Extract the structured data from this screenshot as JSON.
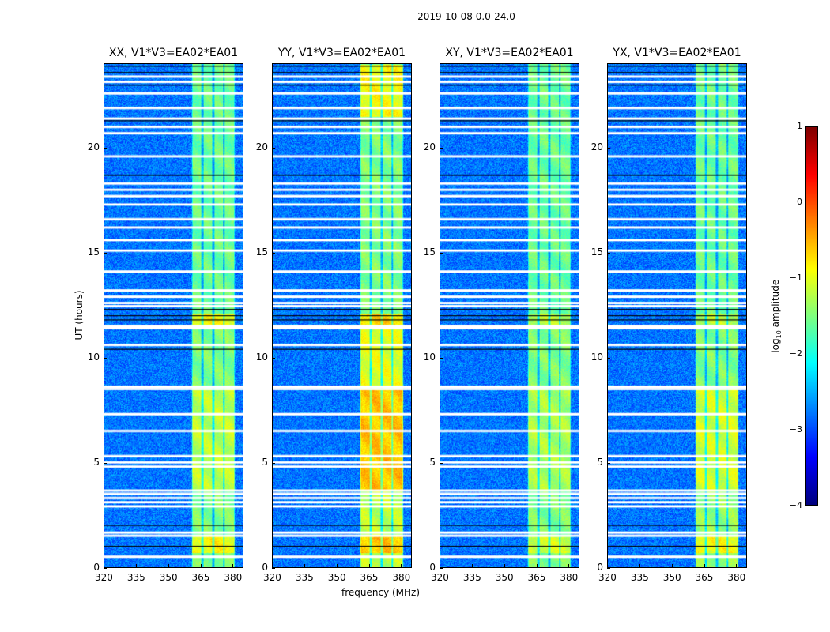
{
  "suptitle": "2019-10-08 0.0-24.0",
  "chart_data": {
    "type": "heatmap",
    "xlabel": "frequency (MHz)",
    "ylabel": "UT (hours)",
    "xlim": [
      320,
      385
    ],
    "ylim": [
      0,
      24
    ],
    "xticks": [
      "320",
      "335",
      "350",
      "365",
      "380"
    ],
    "xtick_values": [
      320,
      335,
      350,
      365,
      380
    ],
    "yticks": [
      "0",
      "5",
      "10",
      "15",
      "20"
    ],
    "ytick_values": [
      0,
      5,
      10,
      15,
      20
    ],
    "colorbar": {
      "label_main": "log",
      "label_sub": "10",
      "label_rest": " amplitude",
      "range": [
        -4,
        1
      ],
      "ticks": [
        "1",
        "0",
        "−1",
        "−2",
        "−3",
        "−4"
      ],
      "tick_values": [
        1,
        0,
        -1,
        -2,
        -3,
        -4
      ],
      "colormap": "jet"
    },
    "background_level": -2.8,
    "band_mhz": [
      361,
      381
    ],
    "band_gaps_mhz": [
      366,
      371,
      376
    ],
    "flagged_white_ut": [
      0.5,
      1.5,
      1.65,
      2.9,
      3.1,
      3.3,
      3.5,
      3.65,
      4.8,
      5.0,
      5.3,
      6.5,
      7.3,
      8.5,
      8.6,
      10.6,
      11.4,
      11.5,
      12.45,
      12.6,
      12.9,
      13.2,
      14.1,
      15.1,
      15.6,
      16.2,
      16.6,
      17.3,
      17.7,
      18.0,
      18.3,
      19.6,
      20.7,
      21.0,
      21.4,
      21.9,
      22.6,
      23.15,
      23.4
    ],
    "flagged_black_ut": [
      1.0,
      2.0,
      10.4,
      11.8,
      12.0,
      12.3,
      18.7,
      21.3,
      23.0,
      23.6,
      23.9
    ],
    "panels": [
      {
        "title": "XX, V1*V3=EA02*EA01",
        "band_levels": [
          [
            0,
            0.7,
            -1.5
          ],
          [
            0.7,
            1.5,
            -0.9
          ],
          [
            1.5,
            3.7,
            -1.5
          ],
          [
            3.7,
            8.5,
            -1.2
          ],
          [
            8.6,
            11.5,
            -1.5
          ],
          [
            11.5,
            12.1,
            -0.9
          ],
          [
            12.1,
            24,
            -1.6
          ]
        ]
      },
      {
        "title": "YY, V1*V3=EA02*EA01",
        "band_levels": [
          [
            0,
            0.7,
            -1.2
          ],
          [
            0.7,
            1.5,
            -0.6
          ],
          [
            1.5,
            3.7,
            -1.2
          ],
          [
            3.7,
            8.5,
            -0.6
          ],
          [
            8.6,
            11.5,
            -1.0
          ],
          [
            11.5,
            12.1,
            -0.7
          ],
          [
            12.1,
            21.5,
            -1.5
          ],
          [
            21.5,
            24,
            -0.9
          ]
        ]
      },
      {
        "title": "XY, V1*V3=EA02*EA01",
        "band_levels": [
          [
            0,
            0.7,
            -1.5
          ],
          [
            0.7,
            1.5,
            -1.1
          ],
          [
            1.5,
            3.7,
            -1.5
          ],
          [
            3.7,
            8.5,
            -1.3
          ],
          [
            8.6,
            11.5,
            -1.5
          ],
          [
            11.5,
            12.1,
            -1.2
          ],
          [
            12.1,
            24,
            -1.6
          ]
        ]
      },
      {
        "title": "YX, V1*V3=EA02*EA01",
        "band_levels": [
          [
            0,
            0.7,
            -1.4
          ],
          [
            0.7,
            1.5,
            -0.9
          ],
          [
            1.5,
            3.7,
            -1.4
          ],
          [
            3.7,
            8.5,
            -1.1
          ],
          [
            8.6,
            11.5,
            -1.5
          ],
          [
            11.5,
            12.1,
            -1.2
          ],
          [
            12.1,
            24,
            -1.6
          ]
        ]
      }
    ]
  }
}
